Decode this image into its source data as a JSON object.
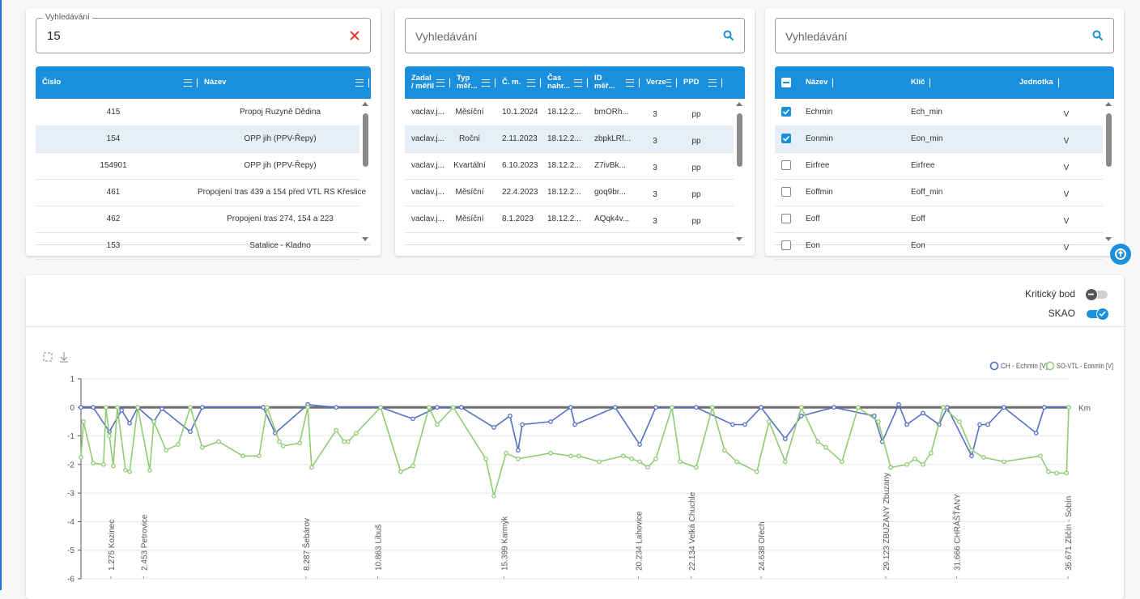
{
  "panels": [
    {
      "search": {
        "label": "Vyhledávání",
        "value": "15"
      },
      "table": {
        "columns": [
          "Číslo",
          "Název"
        ],
        "selected_row": 1,
        "rows": [
          [
            "415",
            "Propoj Ruzyně Dědina"
          ],
          [
            "154",
            "OPP jih (PPV-Řepy)"
          ],
          [
            "154901",
            "OPP jih (PPV-Řepy)"
          ],
          [
            "461",
            "Propojení tras 439 a 154 před VTL RS Křeslice"
          ],
          [
            "462",
            "Propojení tras 274, 154 a 223"
          ],
          [
            "153",
            "Satalice - Kladno"
          ]
        ]
      }
    },
    {
      "search": {
        "placeholder": "Vyhledávání"
      },
      "table": {
        "columns": [
          "Zadal / měřil",
          "Typ měř...",
          "Č. m.",
          "Čas nahr...",
          "ID měř...",
          "Verze",
          "PPD"
        ],
        "selected_row": 1,
        "rows": [
          [
            "vaclav.j...",
            "Měsíční",
            "10.1.2024",
            "18.12.2...",
            "bmORh...",
            "3",
            "pp"
          ],
          [
            "vaclav.j...",
            "Roční",
            "2.11.2023",
            "18.12.2...",
            "zbpkLRf...",
            "3",
            "pp"
          ],
          [
            "vaclav.j...",
            "Kvartální",
            "6.10.2023",
            "18.12.2...",
            "Z7ivBk...",
            "3",
            "pp"
          ],
          [
            "vaclav.j...",
            "Měsíční",
            "22.4.2023",
            "18.12.2...",
            "goq9br...",
            "3",
            "pp"
          ],
          [
            "vaclav.j...",
            "Měsíční",
            "8.1.2023",
            "18.12.2...",
            "AQqk4v...",
            "3",
            "pp"
          ]
        ]
      }
    },
    {
      "search": {
        "placeholder": "Vyhledávání"
      },
      "table": {
        "columns": [
          "Název",
          "Klíč",
          "Jednotka"
        ],
        "selected_row": 1,
        "checked": [
          true,
          true,
          false,
          false,
          false,
          false
        ],
        "rows": [
          [
            "Echmin",
            "Ech_min",
            "V"
          ],
          [
            "Eonmin",
            "Eon_min",
            "V"
          ],
          [
            "Eirfree",
            "Eirfree",
            "V"
          ],
          [
            "Eoffmin",
            "Eoff_min",
            "V"
          ],
          [
            "Eoff",
            "Eoff",
            "V"
          ],
          [
            "Eon",
            "Eon",
            "V"
          ]
        ]
      }
    }
  ],
  "toggles": [
    {
      "label": "Kritický bod",
      "on": false
    },
    {
      "label": "SKAO",
      "on": true
    }
  ],
  "chart_data": {
    "type": "line",
    "x_label": "Km",
    "xlim": [
      0.2,
      35.7
    ],
    "xticks": [
      {
        "value": 1.275,
        "label": "1.275 Kozinec"
      },
      {
        "value": 2.453,
        "label": "2.453 Petrovice"
      },
      {
        "value": 8.287,
        "label": "8.287 Šebárov"
      },
      {
        "value": 10.863,
        "label": "10.863 Libuš"
      },
      {
        "value": 15.399,
        "label": "15.399 Karmýk"
      },
      {
        "value": 20.234,
        "label": "20.234 Lahovice"
      },
      {
        "value": 22.134,
        "label": "22.134 Velká Chuchle"
      },
      {
        "value": 24.638,
        "label": "24.638 Ořech"
      },
      {
        "value": 29.123,
        "label": "29.123 ZBUZANY Zbuzany"
      },
      {
        "value": 31.666,
        "label": "31.666 CHRÁŠŤANY"
      },
      {
        "value": 35.671,
        "label": "35.671 Zličín - Sobín"
      }
    ],
    "ylim": [
      -6,
      1
    ],
    "yticks": [
      -6,
      -5,
      -4,
      -3,
      -2,
      -1,
      0,
      1
    ],
    "grid": true,
    "legend": "top-right",
    "series": [
      {
        "name": "CH - Echmin [V]",
        "color": "#5470c6",
        "x": [
          0.2,
          0.64,
          1.22,
          1.66,
          1.95,
          2.24,
          2.82,
          3.11,
          4.13,
          4.56,
          6.75,
          7.18,
          8.35,
          9.37,
          10.97,
          12.13,
          13.0,
          13.87,
          15.04,
          15.62,
          15.91,
          16.06,
          17.08,
          17.8,
          17.95,
          19.4,
          20.28,
          20.86,
          22.31,
          23.62,
          24.06,
          24.64,
          25.51,
          26.09,
          27.26,
          28.71,
          29.0,
          29.59,
          29.88,
          30.46,
          31.04,
          31.33,
          32.21,
          32.5,
          32.79,
          33.37,
          34.53,
          34.82,
          35.7
        ],
        "values": [
          0,
          0,
          -0.85,
          -0.1,
          -0.55,
          0,
          -0.5,
          -0.05,
          -0.85,
          0,
          0,
          -0.9,
          0.1,
          0,
          0,
          -0.4,
          0,
          0,
          -0.7,
          -0.3,
          -1.5,
          -0.6,
          -0.5,
          0,
          -0.6,
          0,
          -1.3,
          0,
          0,
          -0.6,
          -0.6,
          0,
          -1.1,
          -0.3,
          0,
          -0.3,
          -1.2,
          0.1,
          -0.6,
          -0.2,
          -0.6,
          0,
          -1.7,
          -0.6,
          -0.6,
          0,
          -0.9,
          0,
          0
        ]
      },
      {
        "name": "SO-VTL - Eonmin [V]",
        "color": "#91cc75",
        "x": [
          0.2,
          0.29,
          0.64,
          1.01,
          1.1,
          1.22,
          1.36,
          1.51,
          1.8,
          1.95,
          2.24,
          2.67,
          2.82,
          3.26,
          3.69,
          4.13,
          4.56,
          5.15,
          6.02,
          6.6,
          6.89,
          7.33,
          7.47,
          8.06,
          8.35,
          8.49,
          9.37,
          9.66,
          9.8,
          10.09,
          10.97,
          11.69,
          12.13,
          12.71,
          13.0,
          13.58,
          14.75,
          15.04,
          15.48,
          15.91,
          17.08,
          17.8,
          18.09,
          18.82,
          19.69,
          19.99,
          20.28,
          20.57,
          20.86,
          21.44,
          21.73,
          22.31,
          22.89,
          23.33,
          23.77,
          24.49,
          24.93,
          25.51,
          26.09,
          26.68,
          26.97,
          27.55,
          28.13,
          28.86,
          29.3,
          29.88,
          30.17,
          30.46,
          30.75,
          31.19,
          31.77,
          32.21,
          32.64,
          33.37,
          34.68,
          34.97,
          35.26,
          35.62,
          35.7
        ],
        "values": [
          -1.75,
          -0.5,
          -1.95,
          -2.0,
          0,
          -1.0,
          -2.05,
          0,
          -2.2,
          -2.25,
          0,
          -2.2,
          -0.5,
          -1.5,
          -1.3,
          0,
          -1.4,
          -1.2,
          -1.7,
          -1.7,
          0,
          -1.2,
          -1.35,
          -1.25,
          0,
          -2.1,
          -0.8,
          -1.2,
          -1.2,
          -0.9,
          0,
          -2.25,
          -2.05,
          0,
          -0.6,
          0,
          -1.8,
          -3.1,
          -1.6,
          -1.8,
          -1.6,
          -1.7,
          -1.7,
          -1.9,
          -1.7,
          -1.8,
          -1.9,
          -2.1,
          -1.8,
          0,
          -1.9,
          -2.1,
          0,
          -1.5,
          -1.9,
          -2.25,
          -0.5,
          -1.9,
          0,
          -1.2,
          -1.4,
          -1.9,
          0,
          -0.5,
          -2.1,
          -2.0,
          -1.8,
          -2.0,
          -1.6,
          0,
          -0.5,
          -1.5,
          -1.75,
          -1.9,
          -1.7,
          -2.25,
          -2.3,
          -2.3,
          0
        ]
      }
    ]
  }
}
